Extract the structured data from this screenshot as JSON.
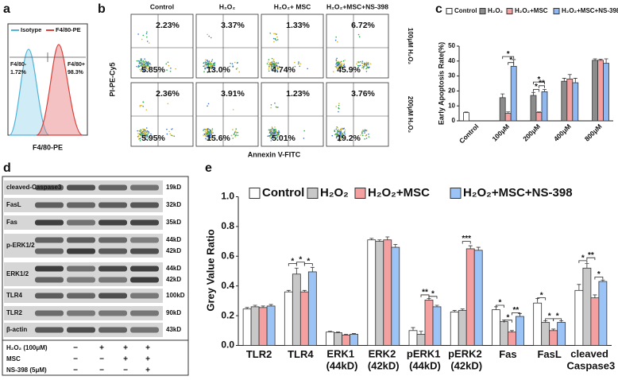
{
  "panel_a": {
    "letter": "a",
    "legend": [
      "Isotype",
      "F4/80-PE"
    ],
    "gate_left": [
      "F4/80-",
      "1.72%"
    ],
    "gate_right": [
      "F4/80+",
      "98.3%"
    ],
    "x_label": "F4/80-PE"
  },
  "panel_b": {
    "letter": "b",
    "columns": [
      "Control",
      "H₂O₂",
      "H₂O₂+ MSC",
      "H₂O₂+MSC+NS-398"
    ],
    "rows": [
      "100μM H₂O₂",
      "200μM H₂O₂"
    ],
    "upper_left": [
      [
        "2.23%",
        "3.37%",
        "1.33%",
        "6.72%"
      ],
      [
        "2.36%",
        "3.91%",
        "1.23%",
        "3.76%"
      ]
    ],
    "lower_right": [
      [
        "5.85%",
        "13.0%",
        "4.74%",
        "45.9%"
      ],
      [
        "5.95%",
        "15.6%",
        "5.01%",
        "19.2%"
      ]
    ],
    "y_label": "PI-PE-Cy5",
    "x_label": "Annexin V-FITC"
  },
  "panel_d": {
    "letter": "d",
    "proteins": [
      {
        "name": "cleaved-Caspase3",
        "sizes": [
          "19kD"
        ]
      },
      {
        "name": "FasL",
        "sizes": [
          "32kD"
        ]
      },
      {
        "name": "Fas",
        "sizes": [
          "35kD"
        ]
      },
      {
        "name": "p-ERK1/2",
        "sizes": [
          "44kD",
          "42kD"
        ]
      },
      {
        "name": "ERK1/2",
        "sizes": [
          "44kD",
          "42kD"
        ]
      },
      {
        "name": "TLR4",
        "sizes": [
          "100kD"
        ]
      },
      {
        "name": "TLR2",
        "sizes": [
          "90kD"
        ]
      },
      {
        "name": "β-actin",
        "sizes": [
          "43kD"
        ]
      }
    ],
    "treatments": [
      {
        "label": "H₂O₂ (100μM)",
        "marks": [
          "−",
          "+",
          "+",
          "+"
        ]
      },
      {
        "label": "MSC",
        "marks": [
          "−",
          "−",
          "+",
          "+"
        ]
      },
      {
        "label": "NS-398 (5μM)",
        "marks": [
          "−",
          "−",
          "−",
          "+"
        ]
      }
    ]
  },
  "chart_data": [
    {
      "type": "bar",
      "panel_label": "c",
      "y_label": "Early Apoptosis Rate(%)",
      "categories": [
        "Control",
        "100μM",
        "200μM",
        "400μM",
        "800μM"
      ],
      "series": [
        {
          "name": "Control",
          "color": "#ffffff",
          "values": [
            5.5,
            null,
            null,
            null,
            null
          ],
          "errors": [
            0.4,
            null,
            null,
            null,
            null
          ]
        },
        {
          "name": "H₂O₂",
          "color": "#8c8c8c",
          "values": [
            null,
            15.5,
            17,
            26.5,
            40.5
          ],
          "errors": [
            null,
            2.5,
            2,
            2,
            1
          ]
        },
        {
          "name": "H₂O₂+MSC",
          "color": "#f4a0a0",
          "values": [
            null,
            5,
            5.5,
            28,
            40.5
          ],
          "errors": [
            null,
            1,
            0.5,
            3,
            0.8
          ]
        },
        {
          "name": "H₂O₂+MSC+NS-398",
          "color": "#8fb8f0",
          "values": [
            null,
            36.5,
            19.5,
            25.5,
            38.5
          ],
          "errors": [
            null,
            4.5,
            1.5,
            3,
            3
          ]
        }
      ],
      "ylim": [
        0,
        50
      ],
      "yticks": [
        0,
        10,
        20,
        30,
        40,
        50
      ],
      "annotations": [
        "*",
        "*",
        "*",
        "*",
        "**"
      ]
    },
    {
      "type": "bar",
      "panel_label": "e",
      "y_label": "Grey Value Ratio",
      "categories": [
        "TLR2",
        "TLR4",
        "ERK1 (44kD)",
        "ERK2 (42kD)",
        "pERK1 (44kD)",
        "pERK2 (42kD)",
        "Fas",
        "FasL",
        "cleaved Caspase3"
      ],
      "series": [
        {
          "name": "Control",
          "color": "#ffffff",
          "values": [
            0.245,
            0.36,
            0.09,
            0.71,
            0.1,
            0.225,
            0.24,
            0.285,
            0.37
          ],
          "errors": [
            0.01,
            0.01,
            0.005,
            0.01,
            0.02,
            0.01,
            0.02,
            0.03,
            0.04
          ]
        },
        {
          "name": "H₂O₂",
          "color": "#c8c8c8",
          "values": [
            0.26,
            0.48,
            0.085,
            0.7,
            0.075,
            0.235,
            0.16,
            0.155,
            0.52
          ],
          "errors": [
            0.01,
            0.04,
            0.005,
            0.01,
            0.02,
            0.01,
            0.01,
            0.01,
            0.03
          ]
        },
        {
          "name": "H₂O₂+MSC",
          "color": "#f4a0a0",
          "values": [
            0.255,
            0.36,
            0.07,
            0.71,
            0.305,
            0.65,
            0.09,
            0.1,
            0.32
          ],
          "errors": [
            0.01,
            0.01,
            0.005,
            0.02,
            0.01,
            0.02,
            0.01,
            0.01,
            0.02
          ]
        },
        {
          "name": "H₂O₂+MSC+NS-398",
          "color": "#9cc3f5",
          "values": [
            0.265,
            0.495,
            0.075,
            0.66,
            0.26,
            0.64,
            0.195,
            0.155,
            0.43
          ],
          "errors": [
            0.01,
            0.03,
            0.005,
            0.02,
            0.01,
            0.02,
            0.02,
            0.01,
            0.01
          ]
        }
      ],
      "ylim": [
        0,
        1
      ],
      "yticks": [
        {
          "value": 0,
          "label": "0.0"
        },
        0.2,
        0.4,
        0.6,
        0.8,
        {
          "value": 1,
          "label": "1.0"
        }
      ],
      "annotations": [
        "*",
        "*",
        "*",
        "**",
        "*",
        "***",
        "*",
        "*",
        "**",
        "*",
        "*",
        "*",
        "*",
        "**",
        "*"
      ]
    }
  ]
}
